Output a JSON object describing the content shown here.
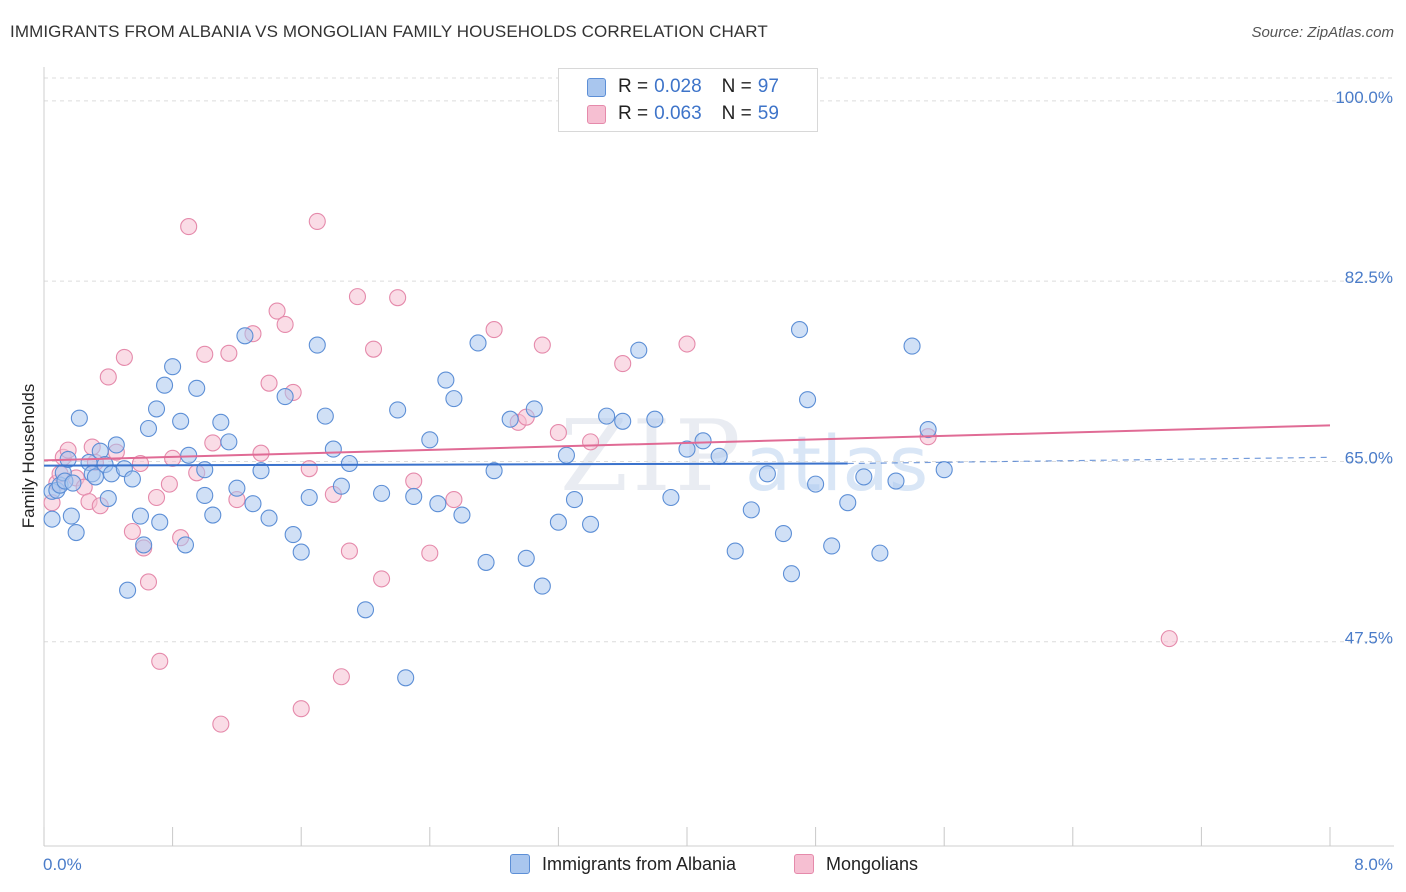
{
  "title": "IMMIGRANTS FROM ALBANIA VS MONGOLIAN FAMILY HOUSEHOLDS CORRELATION CHART",
  "source_text": "Source: ZipAtlas.com",
  "watermark": {
    "a": "ZIP",
    "b": "atlas"
  },
  "legend": {
    "rows": [
      {
        "r_label": "R = ",
        "r_value": "0.028",
        "n_label": "N = ",
        "n_value": "97"
      },
      {
        "r_label": "R = ",
        "r_value": "0.063",
        "n_label": "N = ",
        "n_value": "59"
      }
    ]
  },
  "bottom_legend": {
    "albania": "Immigrants from Albania",
    "mongolians": "Mongolians"
  },
  "colors": {
    "albania_fill": "#a9c6ee",
    "albania_stroke": "#5d8fd6",
    "albania_line": "#3a72cc",
    "mongolian_fill": "#f6bfd2",
    "mongolian_stroke": "#e58aab",
    "mongolian_line": "#e06b95",
    "tick_label": "#4a7cc9",
    "grid": "#dcdcdc"
  },
  "chart_data": {
    "type": "scatter",
    "xlabel": "",
    "ylabel": "Family Households",
    "xlim": [
      0,
      8
    ],
    "ylim": [
      30,
      103
    ],
    "x_tick_labels": [
      {
        "value": 0,
        "label": "0.0%"
      },
      {
        "value": 8,
        "label": "8.0%"
      }
    ],
    "y_ticks": [
      {
        "value": 47.5,
        "label": "47.5%"
      },
      {
        "value": 65.0,
        "label": "65.0%"
      },
      {
        "value": 82.5,
        "label": "82.5%"
      },
      {
        "value": 100.0,
        "label": "100.0%"
      }
    ],
    "grid": true,
    "legend_position": "top-center",
    "series": [
      {
        "name": "Immigrants from Albania",
        "r": 0.028,
        "n": 97,
        "trend": {
          "x": [
            0.0,
            5.0
          ],
          "y": [
            64.6,
            64.8
          ],
          "dashed_extension_to_x": 8.0,
          "dashed_end_y": 65.4
        },
        "points": [
          [
            0.05,
            62.1
          ],
          [
            0.05,
            59.4
          ],
          [
            0.08,
            62.2
          ],
          [
            0.1,
            62.7
          ],
          [
            0.12,
            63.9
          ],
          [
            0.13,
            63.1
          ],
          [
            0.15,
            65.2
          ],
          [
            0.17,
            59.7
          ],
          [
            0.18,
            62.9
          ],
          [
            0.2,
            58.1
          ],
          [
            0.22,
            69.2
          ],
          [
            0.28,
            64.9
          ],
          [
            0.3,
            63.8
          ],
          [
            0.32,
            63.5
          ],
          [
            0.35,
            66.0
          ],
          [
            0.38,
            64.7
          ],
          [
            0.4,
            61.4
          ],
          [
            0.42,
            63.8
          ],
          [
            0.45,
            66.6
          ],
          [
            0.5,
            64.3
          ],
          [
            0.52,
            52.5
          ],
          [
            0.55,
            63.3
          ],
          [
            0.6,
            59.7
          ],
          [
            0.62,
            56.9
          ],
          [
            0.65,
            68.2
          ],
          [
            0.7,
            70.1
          ],
          [
            0.72,
            59.1
          ],
          [
            0.75,
            72.4
          ],
          [
            0.8,
            74.2
          ],
          [
            0.85,
            68.9
          ],
          [
            0.88,
            56.9
          ],
          [
            0.9,
            65.6
          ],
          [
            0.95,
            72.1
          ],
          [
            1.0,
            61.7
          ],
          [
            1.0,
            64.2
          ],
          [
            1.05,
            59.8
          ],
          [
            1.1,
            68.8
          ],
          [
            1.15,
            66.9
          ],
          [
            1.2,
            62.4
          ],
          [
            1.25,
            77.2
          ],
          [
            1.3,
            60.9
          ],
          [
            1.35,
            64.1
          ],
          [
            1.4,
            59.5
          ],
          [
            1.5,
            71.3
          ],
          [
            1.55,
            57.9
          ],
          [
            1.6,
            56.2
          ],
          [
            1.65,
            61.5
          ],
          [
            1.7,
            76.3
          ],
          [
            1.75,
            69.4
          ],
          [
            1.8,
            66.2
          ],
          [
            1.85,
            62.6
          ],
          [
            1.9,
            64.8
          ],
          [
            2.0,
            50.6
          ],
          [
            2.1,
            61.9
          ],
          [
            2.2,
            70.0
          ],
          [
            2.25,
            44.0
          ],
          [
            2.3,
            61.6
          ],
          [
            2.4,
            67.1
          ],
          [
            2.45,
            60.9
          ],
          [
            2.5,
            72.9
          ],
          [
            2.55,
            71.1
          ],
          [
            2.6,
            59.8
          ],
          [
            2.7,
            76.5
          ],
          [
            2.75,
            55.2
          ],
          [
            2.8,
            64.1
          ],
          [
            2.9,
            69.1
          ],
          [
            3.0,
            55.6
          ],
          [
            3.05,
            70.1
          ],
          [
            3.1,
            52.9
          ],
          [
            3.2,
            59.1
          ],
          [
            3.25,
            65.6
          ],
          [
            3.3,
            61.3
          ],
          [
            3.4,
            58.9
          ],
          [
            3.5,
            69.4
          ],
          [
            3.6,
            68.9
          ],
          [
            3.7,
            75.8
          ],
          [
            3.8,
            69.1
          ],
          [
            3.9,
            61.5
          ],
          [
            4.0,
            66.2
          ],
          [
            4.1,
            67.0
          ],
          [
            4.2,
            65.5
          ],
          [
            4.3,
            56.3
          ],
          [
            4.4,
            60.3
          ],
          [
            4.5,
            63.8
          ],
          [
            4.6,
            58.0
          ],
          [
            4.65,
            54.1
          ],
          [
            4.7,
            77.8
          ],
          [
            4.75,
            71.0
          ],
          [
            4.8,
            62.8
          ],
          [
            4.9,
            56.8
          ],
          [
            5.0,
            61.0
          ],
          [
            5.1,
            63.5
          ],
          [
            5.2,
            56.1
          ],
          [
            5.3,
            63.1
          ],
          [
            5.4,
            76.2
          ],
          [
            5.5,
            68.1
          ],
          [
            5.6,
            64.2
          ]
        ]
      },
      {
        "name": "Mongolians",
        "r": 0.063,
        "n": 59,
        "trend": {
          "x": [
            0.0,
            8.0
          ],
          "y": [
            65.1,
            68.5
          ]
        },
        "points": [
          [
            0.05,
            61.0
          ],
          [
            0.08,
            62.9
          ],
          [
            0.1,
            63.8
          ],
          [
            0.12,
            65.4
          ],
          [
            0.15,
            66.1
          ],
          [
            0.2,
            63.4
          ],
          [
            0.25,
            62.5
          ],
          [
            0.28,
            61.1
          ],
          [
            0.3,
            66.4
          ],
          [
            0.32,
            64.9
          ],
          [
            0.35,
            60.7
          ],
          [
            0.4,
            73.2
          ],
          [
            0.45,
            65.9
          ],
          [
            0.5,
            75.1
          ],
          [
            0.55,
            58.2
          ],
          [
            0.6,
            64.8
          ],
          [
            0.62,
            56.6
          ],
          [
            0.65,
            53.3
          ],
          [
            0.7,
            61.5
          ],
          [
            0.72,
            45.6
          ],
          [
            0.78,
            62.8
          ],
          [
            0.8,
            65.3
          ],
          [
            0.85,
            57.6
          ],
          [
            0.9,
            87.8
          ],
          [
            0.95,
            63.9
          ],
          [
            1.0,
            75.4
          ],
          [
            1.05,
            66.8
          ],
          [
            1.1,
            39.5
          ],
          [
            1.15,
            75.5
          ],
          [
            1.2,
            61.3
          ],
          [
            1.3,
            77.4
          ],
          [
            1.35,
            65.8
          ],
          [
            1.4,
            72.6
          ],
          [
            1.45,
            79.6
          ],
          [
            1.5,
            78.3
          ],
          [
            1.55,
            71.7
          ],
          [
            1.6,
            41.0
          ],
          [
            1.65,
            64.3
          ],
          [
            1.7,
            88.3
          ],
          [
            1.8,
            61.8
          ],
          [
            1.85,
            44.1
          ],
          [
            1.9,
            56.3
          ],
          [
            1.95,
            81.0
          ],
          [
            2.05,
            75.9
          ],
          [
            2.1,
            53.6
          ],
          [
            2.2,
            80.9
          ],
          [
            2.3,
            63.1
          ],
          [
            2.4,
            56.1
          ],
          [
            2.55,
            61.3
          ],
          [
            2.8,
            77.8
          ],
          [
            2.95,
            68.8
          ],
          [
            3.0,
            69.3
          ],
          [
            3.1,
            76.3
          ],
          [
            3.2,
            67.8
          ],
          [
            3.4,
            66.9
          ],
          [
            3.6,
            74.5
          ],
          [
            4.0,
            76.4
          ],
          [
            5.5,
            67.4
          ],
          [
            7.0,
            47.8
          ]
        ]
      }
    ]
  }
}
